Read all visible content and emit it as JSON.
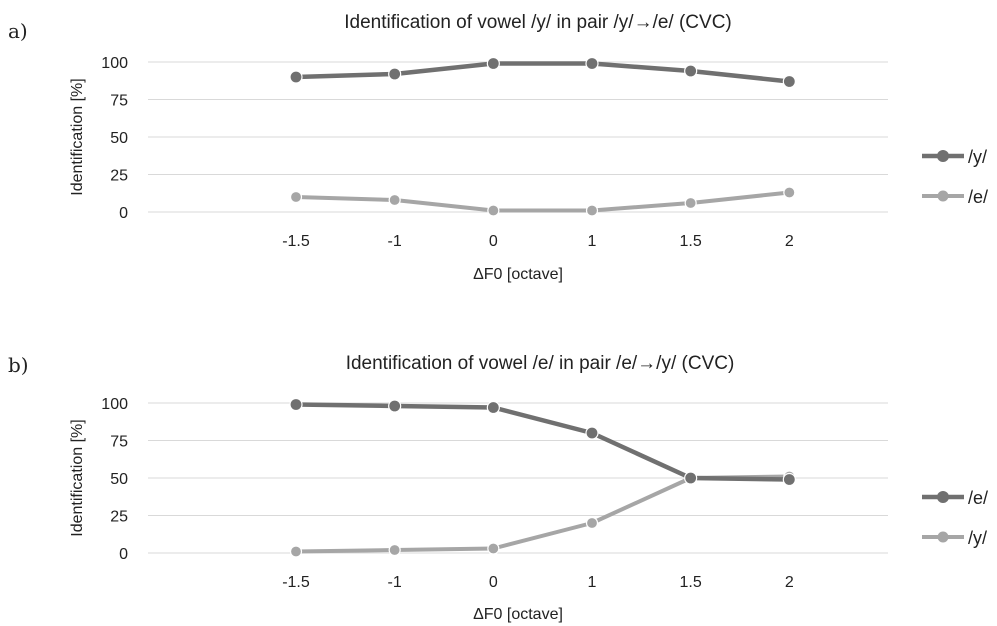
{
  "chart_data": [
    {
      "panel_label": "a)",
      "type": "line",
      "title": "Identification of vowel /y/ in pair /y/→/e/ (CVC)",
      "xlabel": "ΔF0 [octave]",
      "ylabel": "Identification [%]",
      "categories": [
        "-1.5",
        "-1",
        "0",
        "1",
        "1.5",
        "2"
      ],
      "yticks": [
        "0",
        "25",
        "50",
        "75",
        "100"
      ],
      "ylim": [
        0,
        100
      ],
      "grid": true,
      "legend_position": "right",
      "series": [
        {
          "name": "/y/",
          "values": [
            90,
            92,
            99,
            99,
            94,
            87
          ],
          "color": "#707070"
        },
        {
          "name": "/e/",
          "values": [
            10,
            8,
            1,
            1,
            6,
            13
          ],
          "color": "#a6a6a6"
        }
      ]
    },
    {
      "panel_label": "b)",
      "type": "line",
      "title": "Identification of vowel /e/ in pair /e/→/y/ (CVC)",
      "xlabel": "ΔF0 [octave]",
      "ylabel": "Identification [%]",
      "categories": [
        "-1.5",
        "-1",
        "0",
        "1",
        "1.5",
        "2"
      ],
      "yticks": [
        "0",
        "25",
        "50",
        "75",
        "100"
      ],
      "ylim": [
        0,
        100
      ],
      "grid": true,
      "legend_position": "right",
      "series": [
        {
          "name": "/e/",
          "values": [
            99,
            98,
            97,
            80,
            50,
            49
          ],
          "color": "#707070"
        },
        {
          "name": "/y/",
          "values": [
            1,
            2,
            3,
            20,
            50,
            51
          ],
          "color": "#a6a6a6"
        }
      ]
    }
  ]
}
